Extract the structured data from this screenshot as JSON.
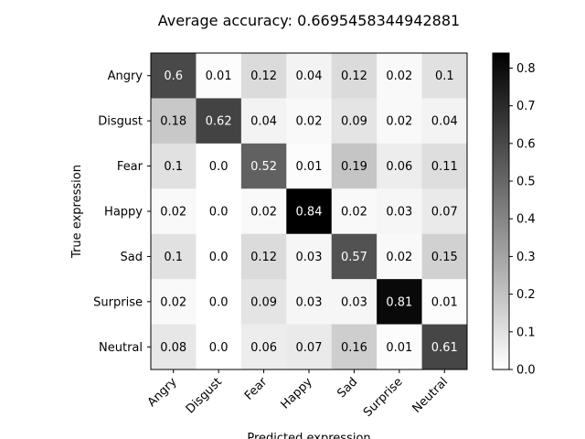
{
  "chart_data": {
    "type": "heatmap",
    "title": "Average accuracy: 0.6695458344942881",
    "xlabel": "Predicted expression",
    "ylabel": "True expression",
    "x_categories": [
      "Angry",
      "Disgust",
      "Fear",
      "Happy",
      "Sad",
      "Surprise",
      "Neutral"
    ],
    "y_categories": [
      "Angry",
      "Disgust",
      "Fear",
      "Happy",
      "Sad",
      "Surprise",
      "Neutral"
    ],
    "values": [
      [
        0.6,
        0.01,
        0.12,
        0.04,
        0.12,
        0.02,
        0.1
      ],
      [
        0.18,
        0.62,
        0.04,
        0.02,
        0.09,
        0.02,
        0.04
      ],
      [
        0.1,
        0.0,
        0.52,
        0.01,
        0.19,
        0.06,
        0.11
      ],
      [
        0.02,
        0.0,
        0.02,
        0.84,
        0.02,
        0.03,
        0.07
      ],
      [
        0.1,
        0.0,
        0.12,
        0.03,
        0.57,
        0.02,
        0.15
      ],
      [
        0.02,
        0.0,
        0.09,
        0.03,
        0.03,
        0.81,
        0.01
      ],
      [
        0.08,
        0.0,
        0.06,
        0.07,
        0.16,
        0.01,
        0.61
      ]
    ],
    "value_labels": [
      [
        "0.6",
        "0.01",
        "0.12",
        "0.04",
        "0.12",
        "0.02",
        "0.1"
      ],
      [
        "0.18",
        "0.62",
        "0.04",
        "0.02",
        "0.09",
        "0.02",
        "0.04"
      ],
      [
        "0.1",
        "0.0",
        "0.52",
        "0.01",
        "0.19",
        "0.06",
        "0.11"
      ],
      [
        "0.02",
        "0.0",
        "0.02",
        "0.84",
        "0.02",
        "0.03",
        "0.07"
      ],
      [
        "0.1",
        "0.0",
        "0.12",
        "0.03",
        "0.57",
        "0.02",
        "0.15"
      ],
      [
        "0.02",
        "0.0",
        "0.09",
        "0.03",
        "0.03",
        "0.81",
        "0.01"
      ],
      [
        "0.08",
        "0.0",
        "0.06",
        "0.07",
        "0.16",
        "0.01",
        "0.61"
      ]
    ],
    "colormap": "greys",
    "vmin": 0.0,
    "vmax": 0.84,
    "colorbar_ticks": [
      0.0,
      0.1,
      0.2,
      0.3,
      0.4,
      0.5,
      0.6,
      0.7,
      0.8
    ],
    "colorbar_tick_labels": [
      "0.0",
      "0.1",
      "0.2",
      "0.3",
      "0.4",
      "0.5",
      "0.6",
      "0.7",
      "0.8"
    ],
    "x_tick_rotation_deg": 45,
    "colors": {
      "text_dark": "#000000",
      "text_light": "#ffffff",
      "cell_low": "#ffffff",
      "cell_high": "#000000"
    }
  }
}
